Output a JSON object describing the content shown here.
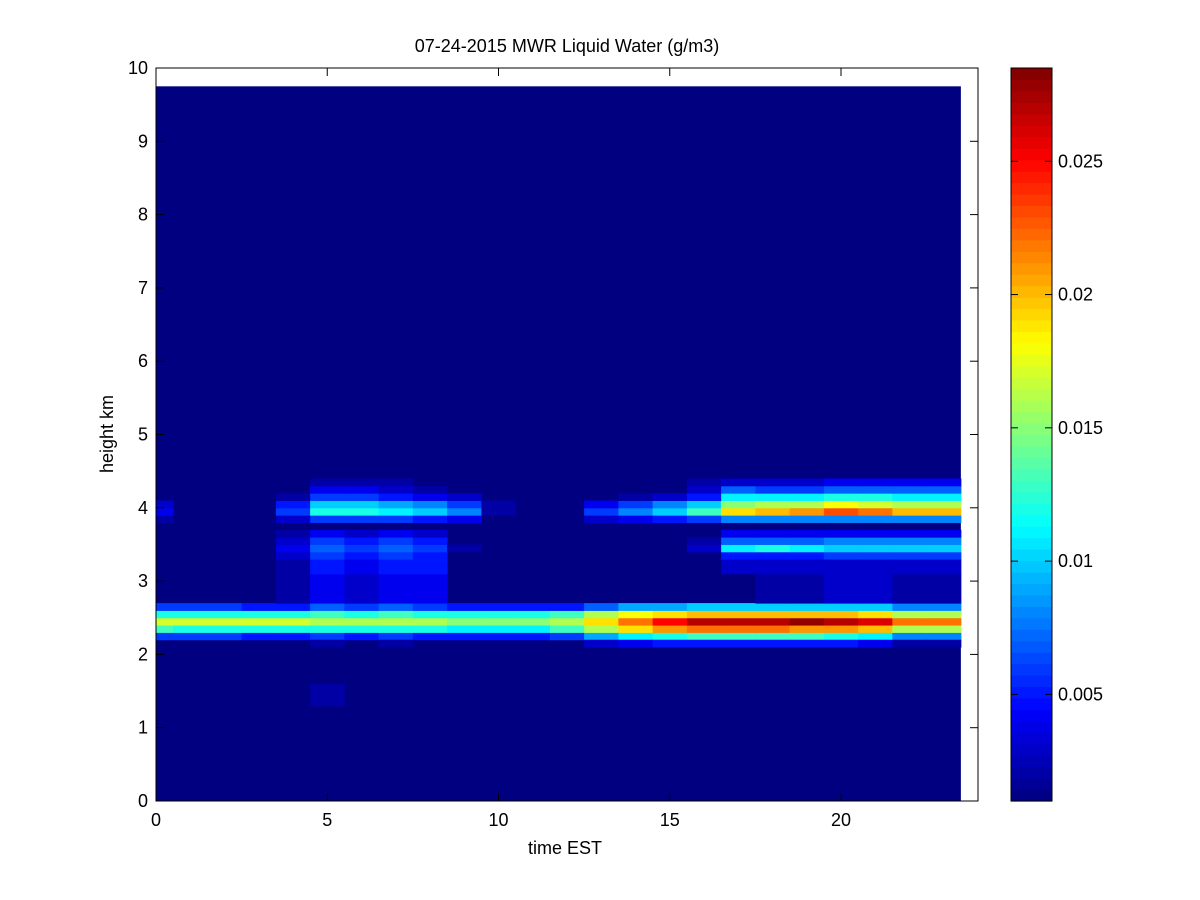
{
  "chart_data": {
    "type": "heatmap",
    "title": "07-24-2015 MWR Liquid Water (g/m3)",
    "xlabel": "time EST",
    "ylabel": "height km",
    "xlim": [
      0,
      24
    ],
    "ylim": [
      0,
      10
    ],
    "xticks": [
      0,
      5,
      10,
      15,
      20
    ],
    "yticks": [
      0,
      1,
      2,
      3,
      4,
      5,
      6,
      7,
      8,
      9,
      10
    ],
    "colorbar": {
      "range": [
        0.001,
        0.0285
      ],
      "ticks": [
        0.005,
        0.01,
        0.015,
        0.02,
        0.025
      ],
      "tick_labels": [
        "0.005",
        "0.01",
        "0.015",
        "0.02",
        "0.025"
      ],
      "colormap": "jet"
    },
    "grid": false,
    "background_value": 0.001,
    "time_step": 1,
    "times": [
      0,
      1,
      2,
      3,
      4,
      5,
      6,
      7,
      8,
      9,
      10,
      11,
      12,
      13,
      14,
      15,
      16,
      17,
      18,
      19,
      20,
      21,
      22,
      23
    ],
    "data_xmax": 23.5,
    "data_ymax": 9.75,
    "rows": [
      {
        "height": 2.25,
        "dh": 0.1,
        "values": [
          0.006,
          0.006,
          0.006,
          0.005,
          0.005,
          0.006,
          0.005,
          0.006,
          0.005,
          0.005,
          0.005,
          0.005,
          0.006,
          0.009,
          0.011,
          0.012,
          0.013,
          0.013,
          0.013,
          0.013,
          0.012,
          0.011,
          0.008,
          0.008
        ]
      },
      {
        "height": 2.35,
        "dh": 0.1,
        "values": [
          0.013,
          0.012,
          0.012,
          0.012,
          0.012,
          0.012,
          0.012,
          0.012,
          0.012,
          0.011,
          0.011,
          0.011,
          0.013,
          0.016,
          0.019,
          0.021,
          0.022,
          0.022,
          0.022,
          0.021,
          0.021,
          0.02,
          0.016,
          0.016
        ]
      },
      {
        "height": 2.45,
        "dh": 0.1,
        "values": [
          0.017,
          0.017,
          0.017,
          0.017,
          0.017,
          0.016,
          0.016,
          0.016,
          0.016,
          0.015,
          0.015,
          0.015,
          0.016,
          0.019,
          0.022,
          0.025,
          0.027,
          0.027,
          0.027,
          0.028,
          0.027,
          0.026,
          0.022,
          0.022
        ]
      },
      {
        "height": 2.55,
        "dh": 0.1,
        "values": [
          0.012,
          0.012,
          0.012,
          0.012,
          0.012,
          0.013,
          0.012,
          0.013,
          0.012,
          0.012,
          0.012,
          0.012,
          0.013,
          0.016,
          0.018,
          0.019,
          0.02,
          0.02,
          0.02,
          0.02,
          0.02,
          0.019,
          0.016,
          0.016
        ]
      },
      {
        "height": 2.65,
        "dh": 0.1,
        "values": [
          0.006,
          0.006,
          0.006,
          0.005,
          0.005,
          0.007,
          0.006,
          0.007,
          0.006,
          0.005,
          0.005,
          0.005,
          0.005,
          0.007,
          0.009,
          0.009,
          0.01,
          0.01,
          0.01,
          0.01,
          0.01,
          0.01,
          0.008,
          0.008
        ]
      },
      {
        "height": 2.15,
        "dh": 0.1,
        "values": [
          0.001,
          0.001,
          0.001,
          0.001,
          0.001,
          0.002,
          0.001,
          0.002,
          0.001,
          0.001,
          0.001,
          0.001,
          0.001,
          0.003,
          0.004,
          0.005,
          0.005,
          0.005,
          0.005,
          0.005,
          0.005,
          0.004,
          0.002,
          0.002
        ]
      },
      {
        "height": 2.9,
        "dh": 0.4,
        "values": [
          0.001,
          0.001,
          0.001,
          0.001,
          0.002,
          0.004,
          0.003,
          0.004,
          0.004,
          0.001,
          0.001,
          0.001,
          0.001,
          0.001,
          0.001,
          0.001,
          0.001,
          0.001,
          0.002,
          0.002,
          0.003,
          0.003,
          0.002,
          0.002
        ]
      },
      {
        "height": 3.2,
        "dh": 0.2,
        "values": [
          0.001,
          0.001,
          0.001,
          0.001,
          0.002,
          0.005,
          0.004,
          0.005,
          0.005,
          0.001,
          0.001,
          0.001,
          0.001,
          0.001,
          0.001,
          0.001,
          0.001,
          0.003,
          0.003,
          0.003,
          0.003,
          0.003,
          0.003,
          0.003
        ]
      },
      {
        "height": 3.35,
        "dh": 0.1,
        "values": [
          0.001,
          0.001,
          0.001,
          0.001,
          0.003,
          0.006,
          0.005,
          0.006,
          0.005,
          0.001,
          0.001,
          0.001,
          0.001,
          0.001,
          0.001,
          0.001,
          0.001,
          0.005,
          0.005,
          0.005,
          0.006,
          0.006,
          0.006,
          0.006
        ]
      },
      {
        "height": 3.45,
        "dh": 0.1,
        "values": [
          0.001,
          0.001,
          0.001,
          0.001,
          0.004,
          0.007,
          0.006,
          0.007,
          0.006,
          0.002,
          0.001,
          0.001,
          0.001,
          0.001,
          0.001,
          0.001,
          0.003,
          0.011,
          0.012,
          0.011,
          0.01,
          0.01,
          0.01,
          0.01
        ]
      },
      {
        "height": 3.55,
        "dh": 0.1,
        "values": [
          0.001,
          0.001,
          0.001,
          0.001,
          0.003,
          0.006,
          0.005,
          0.006,
          0.005,
          0.001,
          0.001,
          0.001,
          0.001,
          0.001,
          0.001,
          0.001,
          0.002,
          0.007,
          0.007,
          0.007,
          0.008,
          0.008,
          0.008,
          0.008
        ]
      },
      {
        "height": 3.65,
        "dh": 0.1,
        "values": [
          0.001,
          0.001,
          0.001,
          0.001,
          0.002,
          0.004,
          0.003,
          0.004,
          0.003,
          0.001,
          0.001,
          0.001,
          0.001,
          0.001,
          0.001,
          0.001,
          0.001,
          0.004,
          0.004,
          0.004,
          0.004,
          0.004,
          0.004,
          0.004
        ]
      },
      {
        "height": 3.85,
        "dh": 0.1,
        "values": [
          0.002,
          0.001,
          0.001,
          0.001,
          0.003,
          0.006,
          0.006,
          0.006,
          0.005,
          0.004,
          0.001,
          0.001,
          0.001,
          0.003,
          0.004,
          0.005,
          0.006,
          0.008,
          0.008,
          0.008,
          0.008,
          0.008,
          0.008,
          0.008
        ]
      },
      {
        "height": 3.95,
        "dh": 0.1,
        "values": [
          0.004,
          0.001,
          0.001,
          0.001,
          0.006,
          0.012,
          0.012,
          0.011,
          0.01,
          0.008,
          0.002,
          0.001,
          0.001,
          0.006,
          0.008,
          0.01,
          0.013,
          0.019,
          0.02,
          0.021,
          0.023,
          0.022,
          0.02,
          0.02
        ]
      },
      {
        "height": 4.05,
        "dh": 0.1,
        "values": [
          0.003,
          0.001,
          0.001,
          0.001,
          0.005,
          0.01,
          0.01,
          0.009,
          0.008,
          0.006,
          0.002,
          0.001,
          0.001,
          0.004,
          0.006,
          0.008,
          0.01,
          0.015,
          0.016,
          0.016,
          0.018,
          0.017,
          0.016,
          0.016
        ]
      },
      {
        "height": 4.15,
        "dh": 0.1,
        "values": [
          0.001,
          0.001,
          0.001,
          0.001,
          0.002,
          0.006,
          0.006,
          0.005,
          0.004,
          0.003,
          0.001,
          0.001,
          0.001,
          0.001,
          0.002,
          0.003,
          0.005,
          0.011,
          0.011,
          0.011,
          0.012,
          0.012,
          0.011,
          0.011
        ]
      },
      {
        "height": 4.25,
        "dh": 0.1,
        "values": [
          0.001,
          0.001,
          0.001,
          0.001,
          0.001,
          0.004,
          0.004,
          0.003,
          0.002,
          0.001,
          0.001,
          0.001,
          0.001,
          0.001,
          0.001,
          0.001,
          0.003,
          0.007,
          0.006,
          0.006,
          0.007,
          0.007,
          0.007,
          0.007
        ]
      },
      {
        "height": 4.35,
        "dh": 0.1,
        "values": [
          0.001,
          0.001,
          0.001,
          0.001,
          0.001,
          0.002,
          0.002,
          0.002,
          0.001,
          0.001,
          0.001,
          0.001,
          0.001,
          0.001,
          0.001,
          0.001,
          0.002,
          0.003,
          0.003,
          0.003,
          0.004,
          0.004,
          0.004,
          0.004
        ]
      },
      {
        "height": 1.45,
        "dh": 0.3,
        "values": [
          0.001,
          0.001,
          0.001,
          0.001,
          0.001,
          0.002,
          0.001,
          0.001,
          0.001,
          0.001,
          0.001,
          0.001,
          0.001,
          0.001,
          0.001,
          0.001,
          0.001,
          0.001,
          0.001,
          0.001,
          0.001,
          0.001,
          0.001,
          0.001
        ]
      }
    ]
  }
}
